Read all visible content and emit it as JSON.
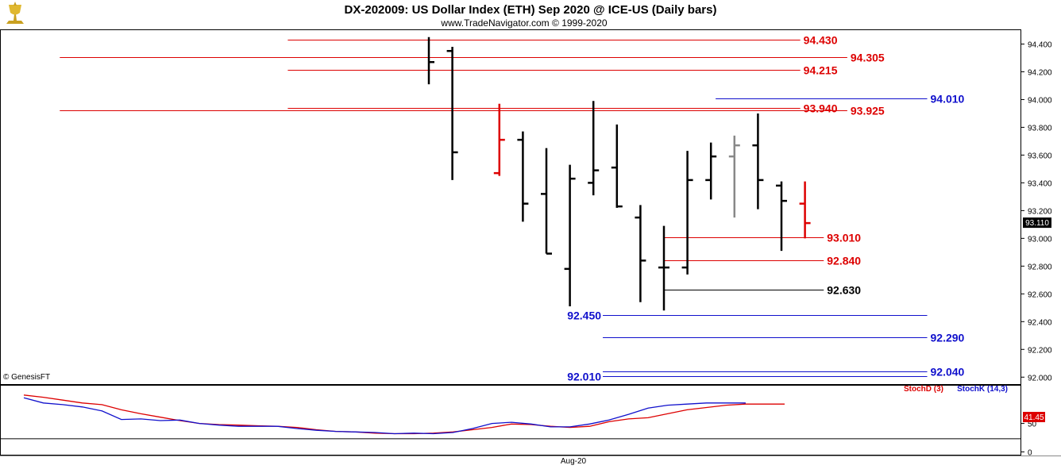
{
  "header": {
    "title": "DX-202009:  US Dollar Index (ETH) Sep 2020 @ ICE-US  (Daily bars)",
    "subtitle": "www.TradeNavigator.com © 1999-2020",
    "copyright": "© GenesisFT",
    "logo_icon": "gold-trophy-icon"
  },
  "chart_data": [
    {
      "type": "ohlc",
      "name": "price",
      "ylim": [
        91.95,
        94.5
      ],
      "y_ticks": [
        "94.400",
        "94.200",
        "94.000",
        "93.800",
        "93.600",
        "93.400",
        "93.200",
        "93.000",
        "92.800",
        "92.600",
        "92.400",
        "92.200",
        "92.000"
      ],
      "y_tick_values": [
        94.4,
        94.2,
        94.0,
        93.8,
        93.6,
        93.4,
        93.2,
        93.0,
        92.8,
        92.6,
        92.4,
        92.2,
        92.0
      ],
      "last_price": "93.110",
      "last_price_value": 93.11,
      "bars": [
        {
          "o": null,
          "h": 94.45,
          "l": 94.11,
          "c": 94.27,
          "color": "#000000"
        },
        {
          "o": 94.35,
          "h": 94.38,
          "l": 93.42,
          "c": 93.62,
          "color": "#000000"
        },
        {
          "o": null,
          "h": null,
          "l": null,
          "c": null,
          "color": "#000000"
        },
        {
          "o": 93.47,
          "h": 93.97,
          "l": 93.45,
          "c": 93.71,
          "color": "#dd0000"
        },
        {
          "o": 93.71,
          "h": 93.77,
          "l": 93.12,
          "c": 93.25,
          "color": "#000000"
        },
        {
          "o": 93.32,
          "h": 93.65,
          "l": 92.89,
          "c": 92.89,
          "color": "#000000"
        },
        {
          "o": 92.78,
          "h": 93.53,
          "l": 92.51,
          "c": 93.43,
          "color": "#000000"
        },
        {
          "o": 93.4,
          "h": 93.99,
          "l": 93.31,
          "c": 93.49,
          "color": "#000000"
        },
        {
          "o": 93.51,
          "h": 93.82,
          "l": 93.22,
          "c": 93.23,
          "color": "#000000"
        },
        {
          "o": 93.15,
          "h": 93.24,
          "l": 92.54,
          "c": 92.84,
          "color": "#000000"
        },
        {
          "o": 92.79,
          "h": 93.09,
          "l": 92.48,
          "c": 92.79,
          "color": "#000000"
        },
        {
          "o": 92.79,
          "h": 93.63,
          "l": 92.74,
          "c": 93.42,
          "color": "#000000"
        },
        {
          "o": 93.42,
          "h": 93.69,
          "l": 93.28,
          "c": 93.59,
          "color": "#000000"
        },
        {
          "o": 93.59,
          "h": 93.74,
          "l": 93.15,
          "c": 93.67,
          "color": "#888888"
        },
        {
          "o": 93.67,
          "h": 93.9,
          "l": 93.21,
          "c": 93.42,
          "color": "#000000"
        },
        {
          "o": 93.38,
          "h": 93.41,
          "l": 92.91,
          "c": 93.27,
          "color": "#000000"
        },
        {
          "o": 93.25,
          "h": 93.41,
          "l": 93.0,
          "c": 93.11,
          "color": "#dd0000"
        }
      ],
      "levels": [
        {
          "label": "94.430",
          "value": 94.43,
          "color": "#dd0000",
          "from_bar": -6,
          "to_bar": 15.8,
          "label_side": "right"
        },
        {
          "label": "94.305",
          "value": 94.305,
          "color": "#dd0000",
          "from_bar": -15.7,
          "to_bar": 17.8,
          "label_side": "right"
        },
        {
          "label": "94.215",
          "value": 94.215,
          "color": "#dd0000",
          "from_bar": -6,
          "to_bar": 15.8,
          "label_side": "right"
        },
        {
          "label": "93.940",
          "value": 93.94,
          "color": "#dd0000",
          "from_bar": -6,
          "to_bar": 15.8,
          "label_side": "right"
        },
        {
          "label": "93.925",
          "value": 93.925,
          "color": "#dd0000",
          "from_bar": -15.7,
          "to_bar": 17.8,
          "label_side": "right"
        },
        {
          "label": "94.010",
          "value": 94.01,
          "color": "#1010cc",
          "from_bar": 12.2,
          "to_bar": 21.2,
          "label_side": "right"
        },
        {
          "label": "93.010",
          "value": 93.01,
          "color": "#dd0000",
          "from_bar": 10,
          "to_bar": 16.8,
          "label_side": "right"
        },
        {
          "label": "92.840",
          "value": 92.84,
          "color": "#dd0000",
          "from_bar": 10,
          "to_bar": 16.8,
          "label_side": "right"
        },
        {
          "label": "92.630",
          "value": 92.63,
          "color": "#000000",
          "from_bar": 10,
          "to_bar": 16.8,
          "label_side": "right"
        },
        {
          "label": "92.450",
          "value": 92.45,
          "color": "#1010cc",
          "from_bar": 7.4,
          "to_bar": 21.2,
          "label_side": "left"
        },
        {
          "label": "92.290",
          "value": 92.29,
          "color": "#1010cc",
          "from_bar": 7.4,
          "to_bar": 21.2,
          "label_side": "right"
        },
        {
          "label": "92.040",
          "value": 92.04,
          "color": "#1010cc",
          "from_bar": 7.4,
          "to_bar": 21.2,
          "label_side": "right"
        },
        {
          "label": "92.010",
          "value": 92.01,
          "color": "#1010cc",
          "from_bar": 7.4,
          "to_bar": 21.2,
          "label_side": "left"
        }
      ]
    },
    {
      "type": "line",
      "name": "stochastic",
      "ylim": [
        -5,
        115
      ],
      "y_ticks": [
        "50",
        "0"
      ],
      "y_tick_values": [
        50,
        0
      ],
      "x_label": "Aug-20",
      "legend": [
        "StochD (3)",
        "StochK (14,3)"
      ],
      "last_value": "41.45",
      "series": [
        {
          "name": "StochD (3)",
          "color": "#dd0000",
          "values": [
            100,
            96,
            91,
            86,
            83,
            74,
            67,
            61,
            55,
            50,
            48,
            47,
            46,
            45,
            43,
            39,
            36,
            35,
            33,
            32,
            32,
            33,
            35,
            39,
            43,
            49,
            48,
            45,
            43,
            45,
            53,
            58,
            60,
            67,
            74,
            78,
            82,
            84,
            84,
            84
          ]
        },
        {
          "name": "StochK (14,3)",
          "color": "#1010cc",
          "values": [
            95,
            86,
            83,
            79,
            72,
            57,
            58,
            55,
            56,
            50,
            47,
            45,
            45,
            45,
            41,
            38,
            36,
            35,
            34,
            32,
            33,
            32,
            34,
            41,
            50,
            52,
            49,
            44,
            44,
            49,
            56,
            66,
            77,
            82,
            84,
            86,
            86,
            86,
            null,
            null
          ]
        }
      ]
    }
  ]
}
